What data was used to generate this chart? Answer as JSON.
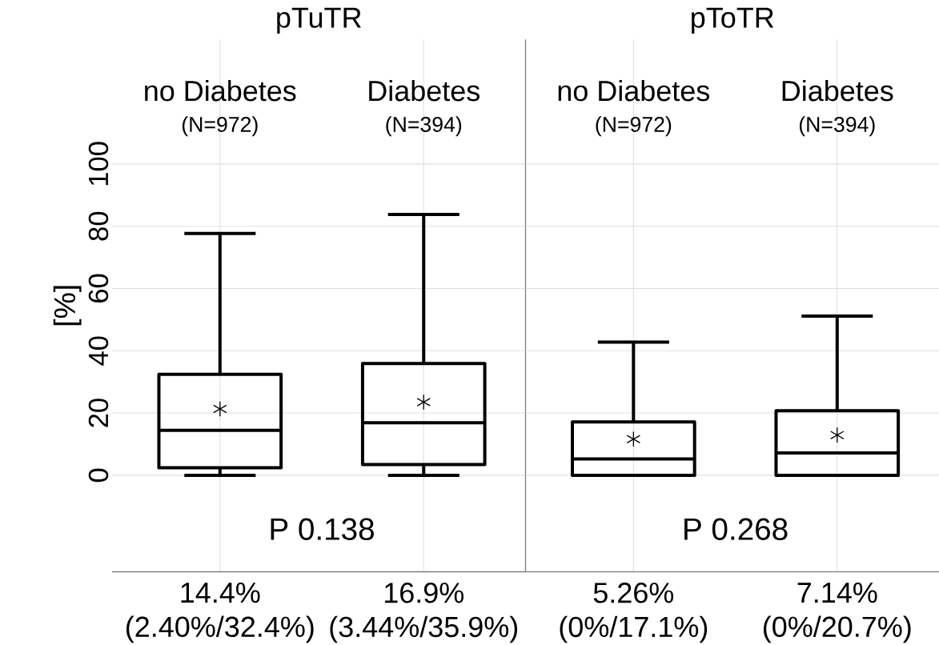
{
  "chart_data": [
    {
      "type": "box",
      "title": "pTuTR",
      "ylabel": "[%]",
      "categories": [
        "no Diabetes",
        "Diabetes"
      ],
      "boxes": [
        {
          "low": 0,
          "q1": 2.4,
          "median": 14.4,
          "q3": 32.4,
          "high": 77.7,
          "mean": 21.3
        },
        {
          "low": 0,
          "q1": 3.44,
          "median": 16.9,
          "q3": 35.9,
          "high": 83.8,
          "mean": 23.5
        }
      ],
      "color": "#000000",
      "ylim": [
        -31,
        140
      ],
      "yticks": [
        0,
        20,
        40,
        60,
        80,
        100
      ],
      "grid": true,
      "value_labels": [
        "14.4% (2.40%/32.4%)",
        "16.9% (3.44%/35.9%)"
      ],
      "annotations": [
        "(N=972)",
        "(N=394)",
        "P 0.138"
      ]
    },
    {
      "type": "box",
      "title": "pToTR",
      "categories": [
        "no Diabetes",
        "Diabetes"
      ],
      "boxes": [
        {
          "low": 0,
          "q1": 0,
          "median": 5.26,
          "q3": 17.1,
          "high": 42.8,
          "mean": 11.6
        },
        {
          "low": 0,
          "q1": 0,
          "median": 7.14,
          "q3": 20.7,
          "high": 51.1,
          "mean": 12.9
        }
      ],
      "color": "#000000",
      "ylim": [
        -31,
        140
      ],
      "yticks": [
        0,
        20,
        40,
        60,
        80,
        100
      ],
      "grid": true,
      "tick_labels": false,
      "value_labels": [
        "5.26% (0%/17.1%)",
        "7.14% (0%/20.7%)"
      ],
      "annotations": [
        "(N=972)",
        "(N=394)",
        "P 0.268"
      ]
    }
  ]
}
